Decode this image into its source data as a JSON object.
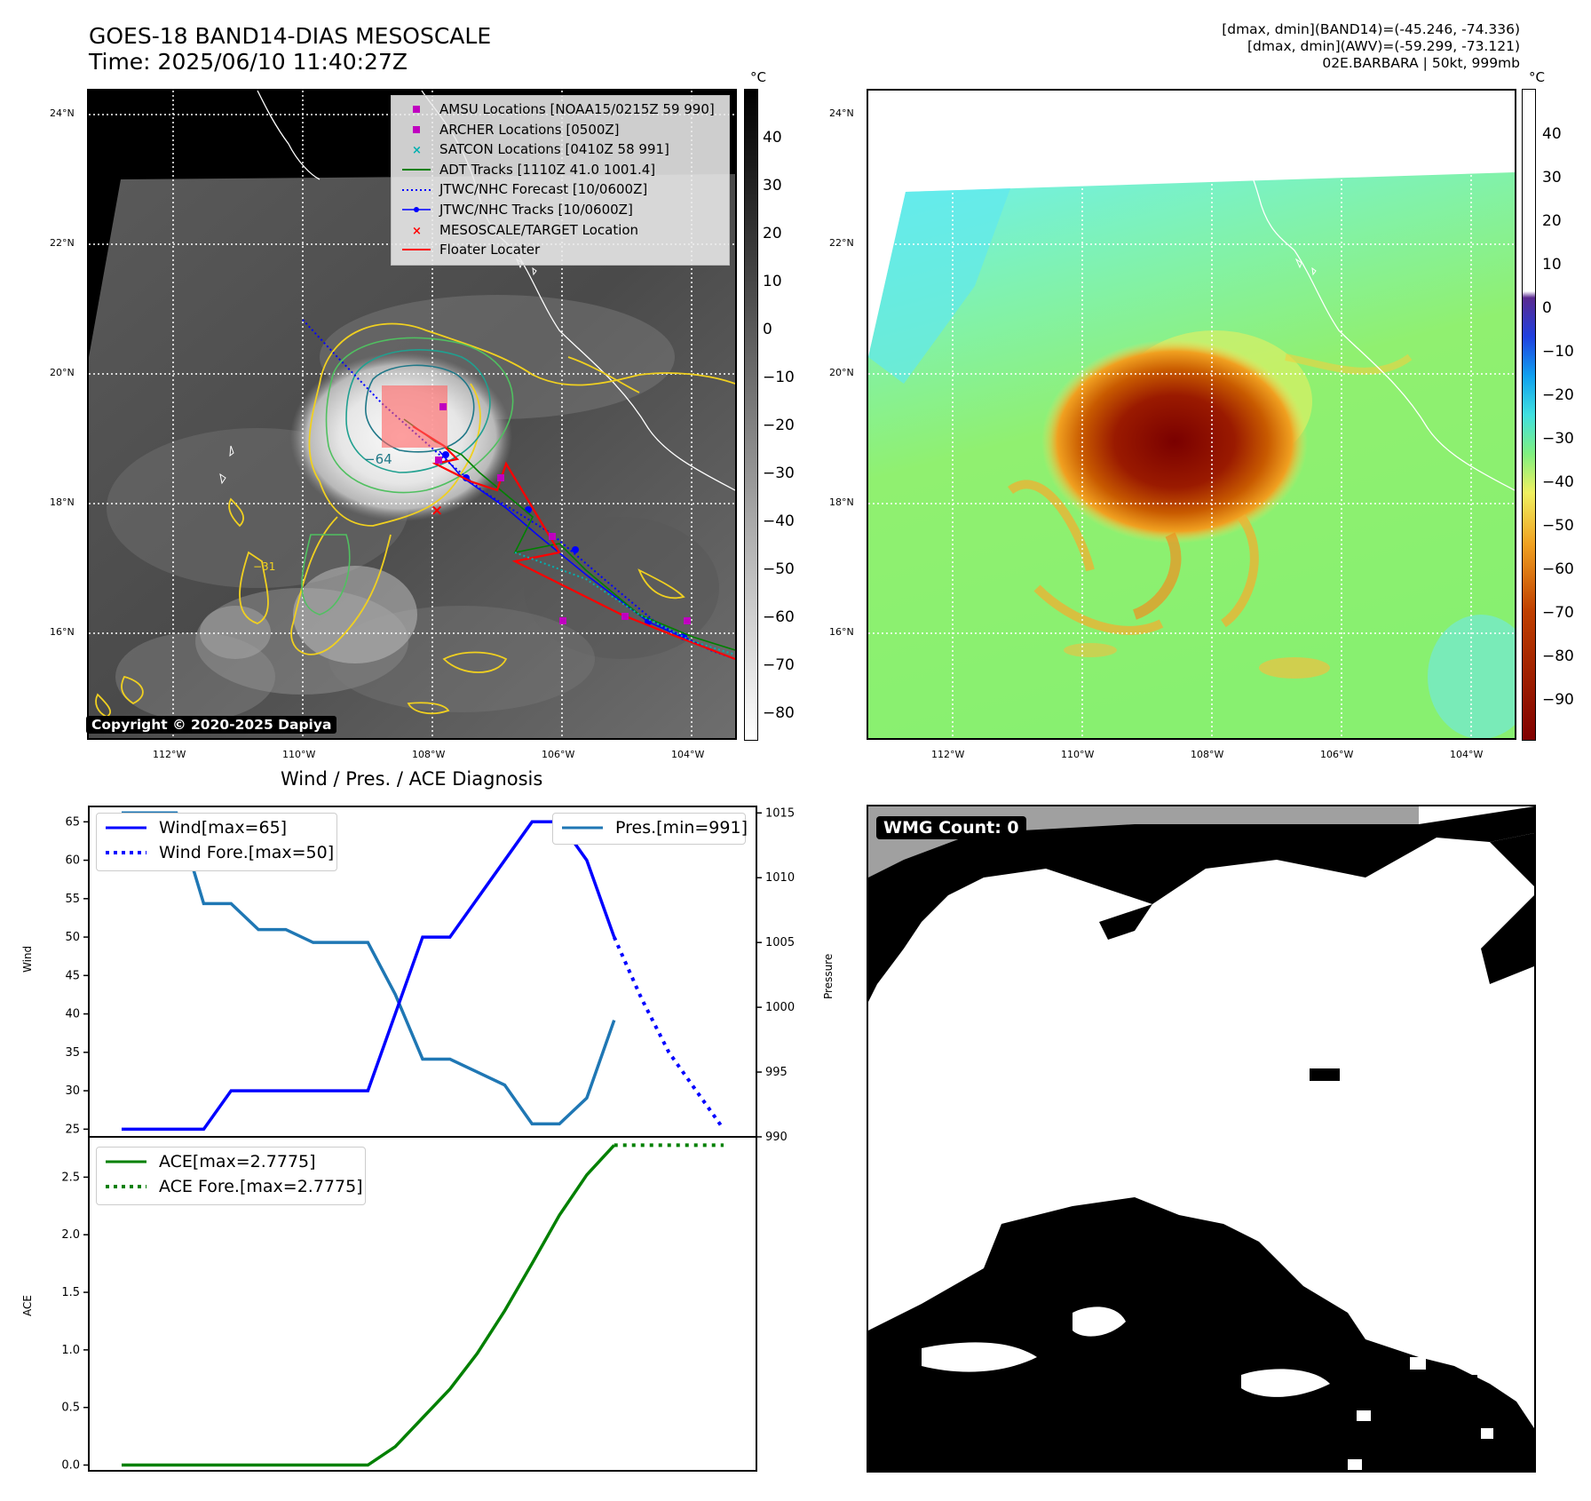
{
  "header": {
    "title_line1": "GOES-18 BAND14-DIAS MESOSCALE",
    "title_line2": "Time: 2025/06/10 11:40:27Z",
    "stats_line1": "[dmax, dmin](BAND14)=(-45.246, -74.336)",
    "stats_line2": "[dmax, dmin](AWV)=(-59.299, -73.121)",
    "stats_line3": "02E.BARBARA | 50kt, 999mb"
  },
  "maps": {
    "lat_ticks": [
      "24°N",
      "22°N",
      "20°N",
      "18°N",
      "16°N"
    ],
    "lon_ticks": [
      "112°W",
      "110°W",
      "108°W",
      "106°W",
      "104°W"
    ],
    "colorbar_unit": "°C",
    "left_colorbar_ticks": [
      "40",
      "30",
      "20",
      "10",
      "0",
      "−10",
      "−20",
      "−30",
      "−40",
      "−50",
      "−60",
      "−70",
      "−80"
    ],
    "right_colorbar_ticks": [
      "40",
      "30",
      "20",
      "10",
      "0",
      "−10",
      "−20",
      "−30",
      "−40",
      "−50",
      "−60",
      "−70",
      "−80",
      "−90"
    ],
    "contour_label_64": "−64",
    "contour_label_31": "−31",
    "copyright": "Copyright © 2020-2025 Dapiya",
    "legend": [
      {
        "label": "AMSU Locations [NOAA15/0215Z 59 990]",
        "color": "#c000c0",
        "marker": "square"
      },
      {
        "label": "ARCHER Locations [0500Z]",
        "color": "#c000c0",
        "marker": "square"
      },
      {
        "label": "SATCON Locations [0410Z 58 991]",
        "color": "#00b0b0",
        "marker": "x"
      },
      {
        "label": "ADT Tracks [1110Z 41.0 1001.4]",
        "color": "#008000",
        "marker": "line"
      },
      {
        "label": "JTWC/NHC Forecast [10/0600Z]",
        "color": "#0000ff",
        "marker": "dotted"
      },
      {
        "label": "JTWC/NHC Tracks [10/0600Z]",
        "color": "#0000ff",
        "marker": "line-dot"
      },
      {
        "label": "MESOSCALE/TARGET Location",
        "color": "#ff0000",
        "marker": "x"
      },
      {
        "label": "Floater Locater",
        "color": "#ff0000",
        "marker": "line"
      }
    ]
  },
  "diagnosis": {
    "title": "Wind / Pres. / ACE Diagnosis",
    "wind_ylabel": "Wind",
    "pressure_ylabel": "Pressure",
    "ace_ylabel": "ACE",
    "wind_ticks": [
      "65",
      "60",
      "55",
      "50",
      "45",
      "40",
      "35",
      "30",
      "25"
    ],
    "pressure_ticks": [
      "1015",
      "1010",
      "1005",
      "1000",
      "995",
      "990"
    ],
    "ace_ticks": [
      "2.5",
      "2.0",
      "1.5",
      "1.0",
      "0.5",
      "0.0"
    ],
    "legend_wind": "Wind[max=65]",
    "legend_wind_fore": "Wind Fore.[max=50]",
    "legend_pres": "Pres.[min=991]",
    "legend_ace": "ACE[max=2.7775]",
    "legend_ace_fore": "ACE Fore.[max=2.7775]"
  },
  "wmg": {
    "label": "WMG Count: 0"
  },
  "chart_data": [
    {
      "type": "line",
      "title": "Wind / Pres. / ACE Diagnosis",
      "ylabel": "Wind",
      "ylim": [
        24,
        67
      ],
      "series": [
        {
          "name": "Wind[max=65]",
          "color": "#0000ff",
          "x": [
            0,
            1,
            2,
            3,
            4,
            5,
            6,
            7,
            8,
            9,
            10,
            11,
            12,
            13,
            14,
            15,
            16,
            17,
            18
          ],
          "values": [
            25,
            25,
            25,
            25,
            30,
            30,
            30,
            30,
            30,
            30,
            40,
            50,
            50,
            55,
            60,
            65,
            65,
            60,
            50
          ]
        },
        {
          "name": "Wind Fore.[max=50]",
          "color": "#0000ff",
          "style": "dotted",
          "x": [
            18,
            19,
            20,
            21,
            22
          ],
          "values": [
            50,
            42,
            35,
            30,
            25
          ]
        }
      ]
    },
    {
      "type": "line",
      "ylabel": "Pressure",
      "ylim": [
        990,
        1015.5
      ],
      "series": [
        {
          "name": "Pres.[min=991]",
          "color": "#1f77b4",
          "x": [
            0,
            1,
            2,
            3,
            4,
            5,
            6,
            7,
            8,
            9,
            10,
            11,
            12,
            13,
            14,
            15,
            16,
            17,
            18
          ],
          "values": [
            1015,
            1015,
            1015,
            1008,
            1008,
            1006,
            1006,
            1005,
            1005,
            1005,
            1001,
            996,
            996,
            995,
            994,
            991,
            991,
            993,
            999
          ]
        }
      ]
    },
    {
      "type": "line",
      "ylabel": "ACE",
      "ylim": [
        -0.05,
        2.85
      ],
      "series": [
        {
          "name": "ACE[max=2.7775]",
          "color": "#008000",
          "x": [
            0,
            1,
            2,
            3,
            4,
            5,
            6,
            7,
            8,
            9,
            10,
            11,
            12,
            13,
            14,
            15,
            16,
            17,
            18
          ],
          "values": [
            0,
            0,
            0,
            0,
            0,
            0,
            0,
            0,
            0,
            0,
            0.16,
            0.41,
            0.66,
            0.97,
            1.34,
            1.75,
            2.17,
            2.52,
            2.7775
          ]
        },
        {
          "name": "ACE Fore.[max=2.7775]",
          "color": "#008000",
          "style": "dotted",
          "x": [
            18,
            19,
            20,
            21,
            22
          ],
          "values": [
            2.7775,
            2.7775,
            2.7775,
            2.7775,
            2.7775
          ]
        }
      ]
    }
  ]
}
